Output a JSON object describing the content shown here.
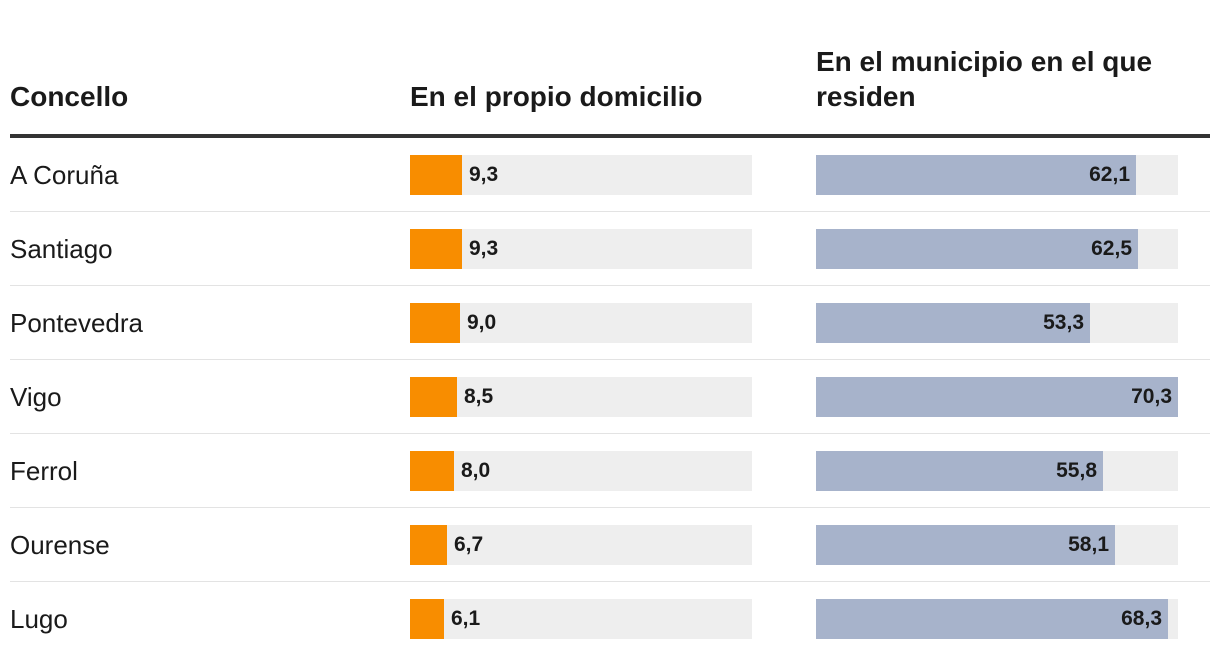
{
  "headers": {
    "col1": "Concello",
    "col2": "En el propio domicilio",
    "col3": "En el municipio en el que residen"
  },
  "colors": {
    "domicilio": "#f88d00",
    "municipio": "#a7b3cb",
    "track": "#eeeeee"
  },
  "chart_data": {
    "type": "bar",
    "orientation": "horizontal",
    "categories": [
      "A Coruña",
      "Santiago",
      "Pontevedra",
      "Vigo",
      "Ferrol",
      "Ourense",
      "Lugo"
    ],
    "series": [
      {
        "name": "En el propio domicilio",
        "values": [
          9.3,
          9.3,
          9.0,
          8.5,
          8.0,
          6.7,
          6.1
        ],
        "labels": [
          "9,3",
          "9,3",
          "9,0",
          "8,5",
          "8,0",
          "6,7",
          "6,1"
        ],
        "xlim": [
          0,
          61.5
        ]
      },
      {
        "name": "En el municipio en el que residen",
        "values": [
          62.1,
          62.5,
          53.3,
          70.3,
          55.8,
          58.1,
          68.3
        ],
        "labels": [
          "62,1",
          "62,5",
          "53,3",
          "70,3",
          "55,8",
          "58,1",
          "68,3"
        ],
        "xlim": [
          0,
          70.3
        ]
      }
    ]
  }
}
